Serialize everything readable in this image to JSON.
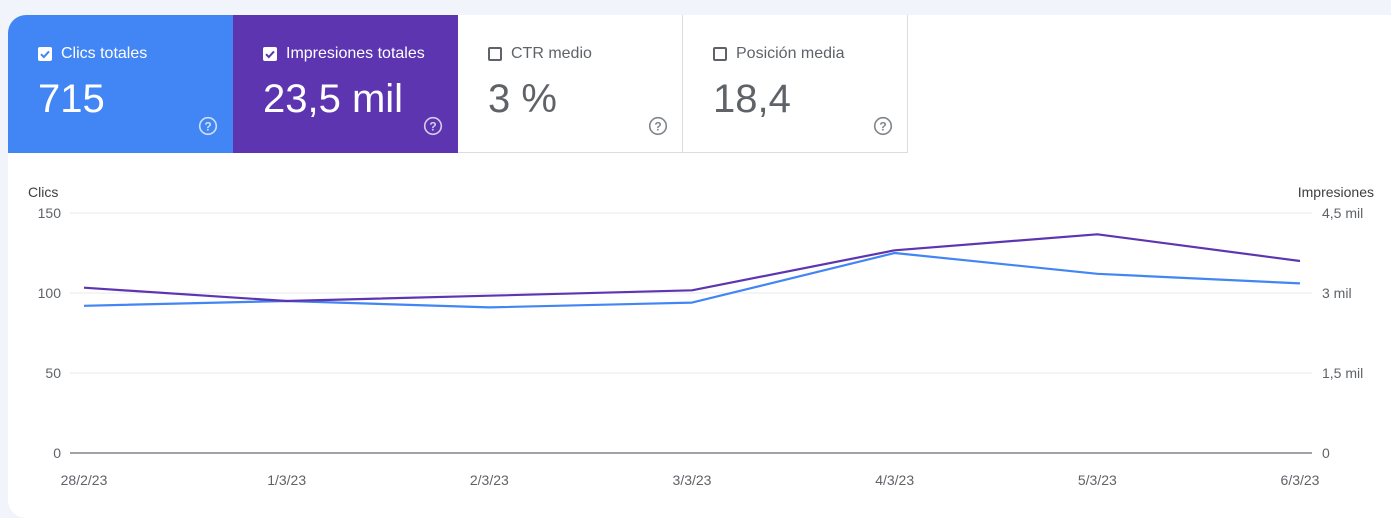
{
  "metrics": [
    {
      "label": "Clics totales",
      "value": "715",
      "checked": true,
      "color": "#4285f4",
      "icon": "help-circle-icon"
    },
    {
      "label": "Impresiones totales",
      "value": "23,5 mil",
      "checked": true,
      "color": "#5e35b1",
      "icon": "help-circle-icon"
    },
    {
      "label": "CTR medio",
      "value": "3 %",
      "checked": false,
      "icon": "help-circle-icon"
    },
    {
      "label": "Posición media",
      "value": "18,4",
      "checked": false,
      "icon": "help-circle-icon"
    }
  ],
  "chart_data": {
    "type": "line",
    "categories": [
      "28/2/23",
      "1/3/23",
      "2/3/23",
      "3/3/23",
      "4/3/23",
      "5/3/23",
      "6/3/23"
    ],
    "left_axis": {
      "label": "Clics",
      "ticks": [
        "0",
        "50",
        "100",
        "150"
      ],
      "range": [
        0,
        150
      ]
    },
    "right_axis": {
      "label": "Impresiones",
      "ticks": [
        "0",
        "1,5 mil",
        "3 mil",
        "4,5 mil"
      ],
      "range": [
        0,
        4500
      ]
    },
    "series": [
      {
        "name": "Clics",
        "axis": "left",
        "color": "#4285f4",
        "values": [
          92,
          95,
          91,
          94,
          125,
          112,
          106
        ]
      },
      {
        "name": "Impresiones",
        "axis": "right",
        "color": "#5e35b1",
        "values": [
          3100,
          2850,
          2950,
          3050,
          3800,
          4100,
          3600
        ]
      }
    ],
    "grid": true
  }
}
